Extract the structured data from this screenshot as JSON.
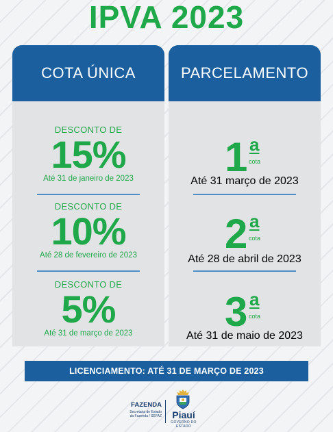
{
  "title": "IPVA 2023",
  "cota_unica": {
    "header": "COTA ÚNICA",
    "items": [
      {
        "label": "DESCONTO DE",
        "value": "15%",
        "deadline": "Até 31 de janeiro de 2023"
      },
      {
        "label": "DESCONTO DE",
        "value": "10%",
        "deadline": "Até 28 de fevereiro de 2023"
      },
      {
        "label": "DESCONTO DE",
        "value": "5%",
        "deadline": "Até 31 de março de 2023"
      }
    ]
  },
  "parcelamento": {
    "header": "PARCELAMENTO",
    "items": [
      {
        "number": "1",
        "ordinal": "a",
        "unit": "cota",
        "deadline": "Até 31 março de 2023"
      },
      {
        "number": "2",
        "ordinal": "a",
        "unit": "cota",
        "deadline": "Até 28 de abril de 2023"
      },
      {
        "number": "3",
        "ordinal": "a",
        "unit": "cota",
        "deadline": "Até 31 de maio de 2023"
      }
    ]
  },
  "banner": "LICENCIAMENTO: ATÉ 31 DE MARÇO DE 2023",
  "footer": {
    "fazenda_title": "FAZENDA",
    "fazenda_line1": "Secretaria de Estado",
    "fazenda_line2": "da Fazenda / SEFAZ",
    "state_name": "Piauí",
    "state_sub": "GOVERNO DO ESTADO"
  },
  "colors": {
    "green": "#1fa84a",
    "blue": "#1b5f9e",
    "panel": "#e2e3e5",
    "navy": "#1a3f6f"
  }
}
